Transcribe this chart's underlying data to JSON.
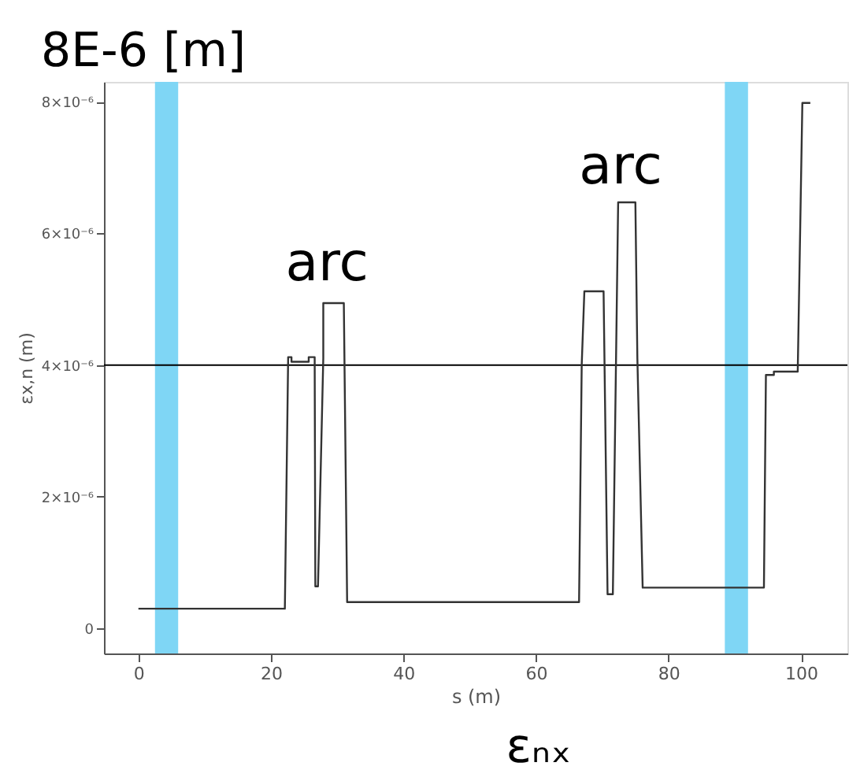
{
  "chart_data": {
    "type": "line",
    "title": "8E-6 [m]",
    "xlabel": "s (m)",
    "ylabel": "εx,n (m)",
    "x": [
      0,
      22.1,
      22.6,
      23.1,
      23.1,
      25.7,
      25.7,
      26.6,
      26.7,
      27.1,
      27.9,
      27.9,
      31.0,
      31.5,
      66.5,
      66.9,
      67.3,
      70.2,
      70.8,
      71.6,
      72.4,
      75.0,
      75.3,
      76.1,
      94.4,
      94.7,
      95.9,
      95.9,
      99.5,
      100.2,
      101.4
    ],
    "series": [
      {
        "color": "#333333",
        "values": [
          3e-07,
          3e-07,
          4.12e-06,
          4.12e-06,
          4.05e-06,
          4.05e-06,
          4.12e-06,
          4.12e-06,
          6.4e-07,
          6.4e-07,
          4.1e-06,
          4.94e-06,
          4.94e-06,
          4e-07,
          4e-07,
          4e-06,
          5.12e-06,
          5.12e-06,
          5.2e-07,
          5.2e-07,
          6.47e-06,
          6.47e-06,
          4.1e-06,
          6.2e-07,
          6.2e-07,
          3.85e-06,
          3.85e-06,
          3.9e-06,
          3.9e-06,
          7.98e-06,
          7.98e-06
        ]
      }
    ],
    "xlim": [
      -5.2,
      107
    ],
    "xticks": [
      0,
      20,
      40,
      60,
      80,
      100
    ],
    "ylim": [
      -3.8e-07,
      8.3e-06
    ],
    "yticks": [
      {
        "value": 0,
        "label": "0"
      },
      {
        "value": 2e-06,
        "label": "2×10⁻⁶"
      },
      {
        "value": 4e-06,
        "label": "4×10⁻⁶"
      },
      {
        "value": 6e-06,
        "label": "6×10⁻⁶"
      },
      {
        "value": 8e-06,
        "label": "8×10⁻⁶"
      }
    ],
    "ref_lines": [
      {
        "axis": "y",
        "value": 4e-06,
        "color": "#000000"
      }
    ],
    "bands": [
      {
        "axis": "x",
        "from": 2.5,
        "to": 6.0,
        "color": "#7fd6f5"
      },
      {
        "axis": "x",
        "from": 88.5,
        "to": 92.0,
        "color": "#7fd6f5"
      }
    ],
    "annotations": [
      "arc",
      "arc",
      "εₙₓ"
    ],
    "grid": false,
    "marker": "none",
    "line_style": "solid"
  }
}
